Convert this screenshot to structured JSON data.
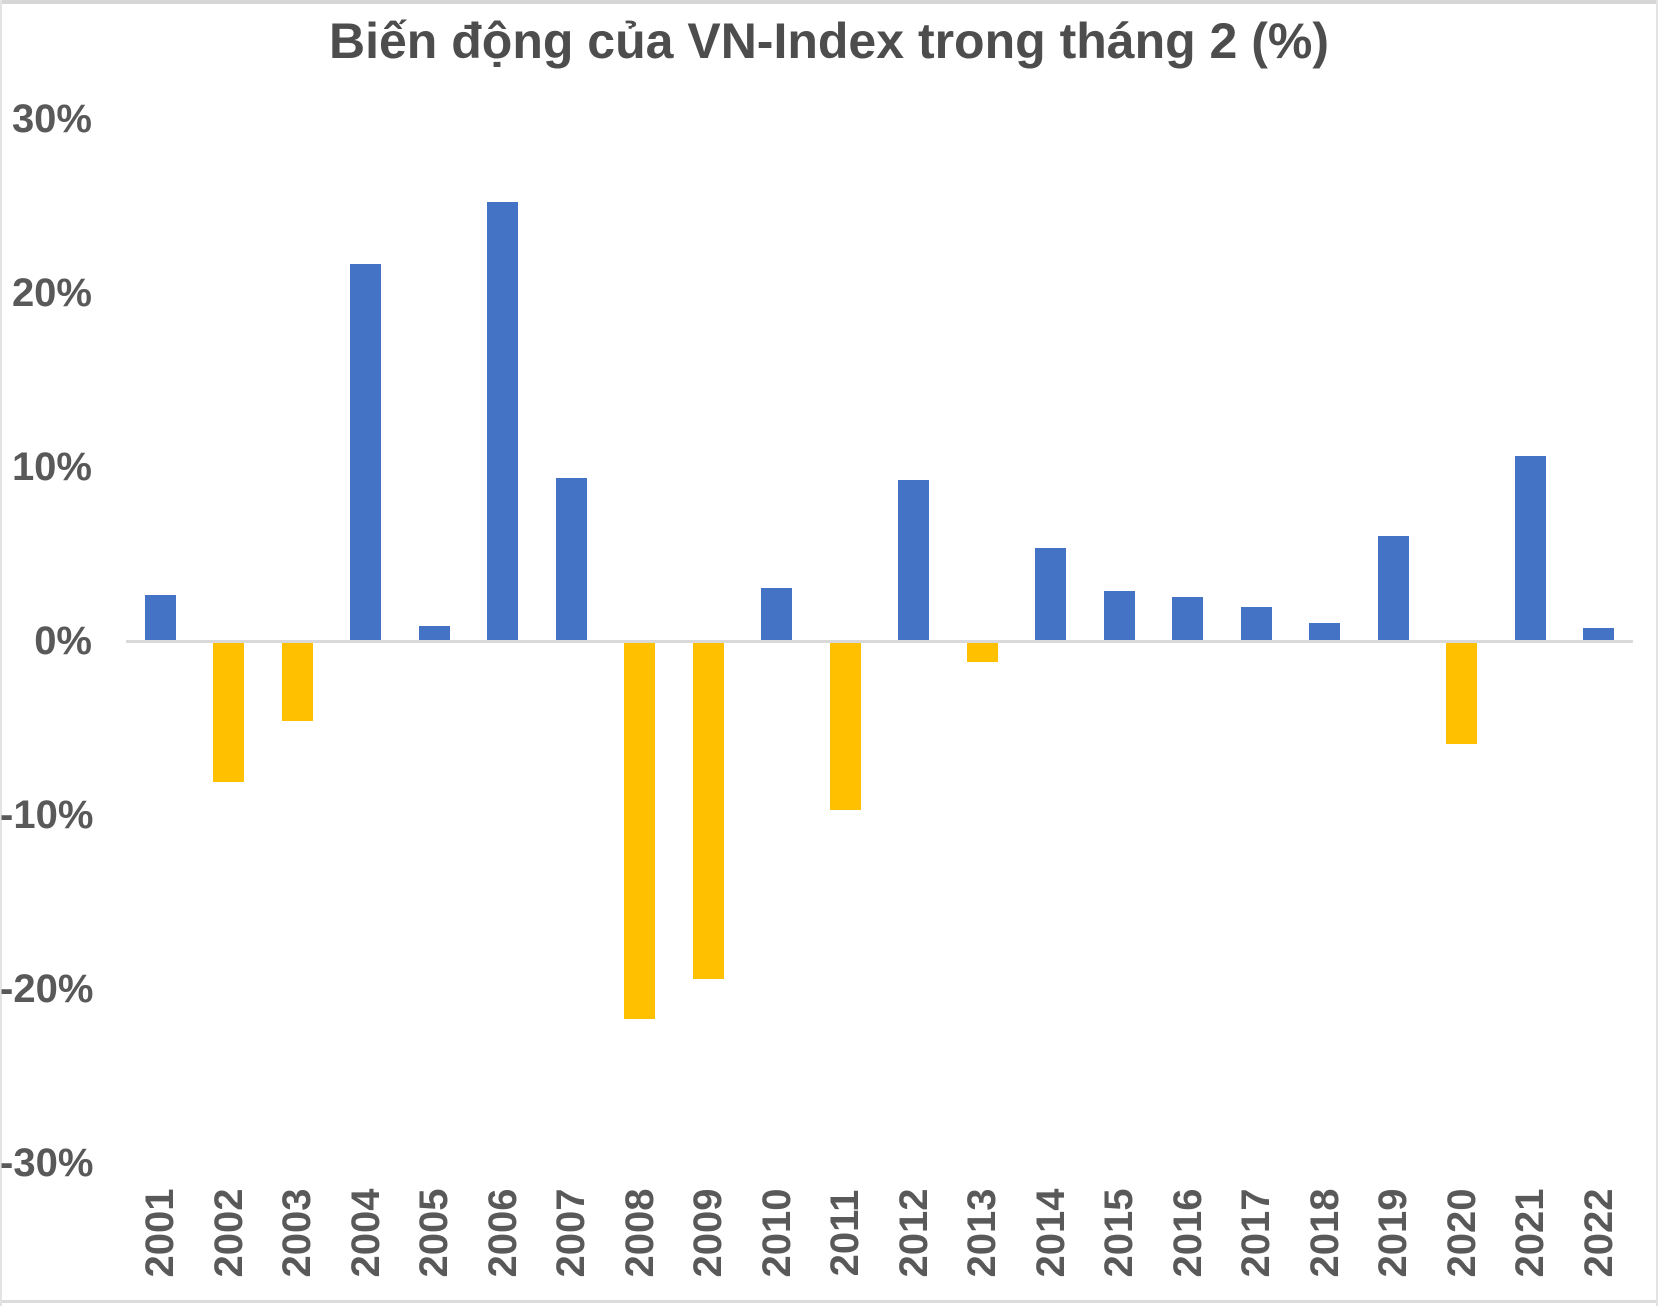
{
  "title": "Biến động của VN-Index trong tháng 2 (%)",
  "colors": {
    "positive_bar": "#4472C4",
    "negative_bar": "#FFC000",
    "axis_line": "#D9D9D9",
    "label_text": "#595959",
    "title_text": "#4D4D4D"
  },
  "chart_data": {
    "type": "bar",
    "title": "Biến động của VN-Index trong tháng 2 (%)",
    "xlabel": "",
    "ylabel": "",
    "categories": [
      "2001",
      "2002",
      "2003",
      "2004",
      "2005",
      "2006",
      "2007",
      "2008",
      "2009",
      "2010",
      "2011",
      "2012",
      "2013",
      "2014",
      "2015",
      "2016",
      "2017",
      "2018",
      "2019",
      "2020",
      "2021",
      "2022"
    ],
    "values": [
      2.6,
      -8.0,
      -4.5,
      21.6,
      0.8,
      25.2,
      9.3,
      -21.6,
      -19.3,
      3.0,
      -9.6,
      9.2,
      -1.1,
      5.3,
      2.8,
      2.5,
      1.9,
      1.0,
      6.0,
      -5.8,
      10.6,
      0.7
    ],
    "ylim": [
      -30,
      30
    ],
    "y_ticks": [
      {
        "value": 30,
        "label": "30%"
      },
      {
        "value": 20,
        "label": "20%"
      },
      {
        "value": 10,
        "label": "10%"
      },
      {
        "value": 0,
        "label": "0%"
      },
      {
        "value": -10,
        "label": "-10%"
      },
      {
        "value": -20,
        "label": "-20%"
      },
      {
        "value": -30,
        "label": "-30%"
      }
    ],
    "grid": false,
    "legend": false,
    "color_rule": "positive values blue (#4472C4), negative values yellow (#FFC000)"
  }
}
